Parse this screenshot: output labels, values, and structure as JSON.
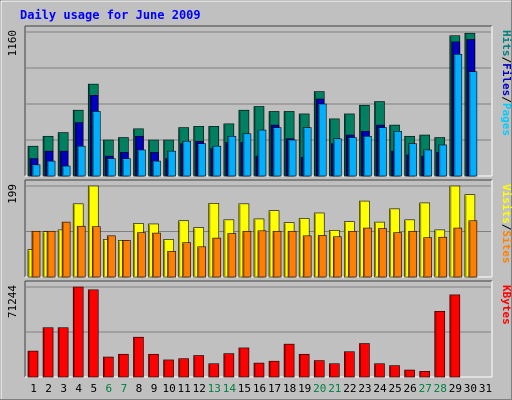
{
  "chart_data": [
    {
      "type": "bar",
      "title": "Daily usage for June 2009",
      "ymax_label": "1160",
      "legend": [
        {
          "label": "Pages",
          "color": "#00ccff"
        },
        {
          "label": "Files",
          "color": "#0000c0"
        },
        {
          "label": "Hits",
          "color": "#008080"
        }
      ],
      "categories": [
        "1",
        "2",
        "3",
        "4",
        "5",
        "6",
        "7",
        "8",
        "9",
        "10",
        "11",
        "12",
        "13",
        "14",
        "15",
        "16",
        "17",
        "18",
        "19",
        "20",
        "21",
        "22",
        "23",
        "24",
        "25",
        "26",
        "27",
        "28",
        "29",
        "30",
        "31"
      ],
      "weekend_days": [
        "6",
        "7",
        "13",
        "14",
        "20",
        "21",
        "27",
        "28"
      ],
      "series": [
        {
          "name": "Hits",
          "color": "#008060",
          "values": [
            240,
            320,
            350,
            530,
            740,
            290,
            310,
            380,
            290,
            290,
            390,
            400,
            400,
            420,
            530,
            560,
            520,
            520,
            500,
            680,
            460,
            500,
            570,
            600,
            410,
            320,
            330,
            310,
            1130,
            1150,
            null
          ]
        },
        {
          "name": "Files",
          "color": "#0000c0",
          "values": [
            140,
            200,
            200,
            430,
            650,
            160,
            190,
            320,
            190,
            140,
            260,
            280,
            220,
            270,
            270,
            160,
            410,
            300,
            150,
            620,
            260,
            330,
            360,
            410,
            200,
            170,
            160,
            190,
            1080,
            1100,
            null
          ]
        },
        {
          "name": "Pages",
          "color": "#00b0ff",
          "values": [
            90,
            120,
            80,
            240,
            520,
            140,
            140,
            210,
            120,
            200,
            280,
            260,
            240,
            320,
            340,
            370,
            390,
            290,
            390,
            580,
            300,
            310,
            320,
            390,
            360,
            260,
            210,
            250,
            980,
            840,
            null
          ]
        }
      ],
      "ylim": [
        0,
        1160
      ]
    },
    {
      "type": "bar",
      "ymax_label": "199",
      "legend": [
        {
          "label": "Sites",
          "color": "#ff8000"
        },
        {
          "label": "Visits",
          "color": "#ffff00"
        }
      ],
      "categories": [
        "1",
        "2",
        "3",
        "4",
        "5",
        "6",
        "7",
        "8",
        "9",
        "10",
        "11",
        "12",
        "13",
        "14",
        "15",
        "16",
        "17",
        "18",
        "19",
        "20",
        "21",
        "22",
        "23",
        "24",
        "25",
        "26",
        "27",
        "28",
        "29",
        "30",
        "31"
      ],
      "series": [
        {
          "name": "Visits",
          "color": "#ffff00",
          "values": [
            60,
            99,
            103,
            160,
            199,
            82,
            80,
            117,
            116,
            82,
            123,
            108,
            161,
            125,
            160,
            127,
            145,
            119,
            128,
            140,
            102,
            121,
            166,
            120,
            149,
            125,
            162,
            103,
            199,
            180,
            null
          ]
        },
        {
          "name": "Sites",
          "color": "#ff8000",
          "values": [
            100,
            100,
            120,
            111,
            110,
            90,
            80,
            97,
            96,
            56,
            75,
            66,
            85,
            95,
            100,
            101,
            100,
            100,
            90,
            91,
            88,
            100,
            107,
            106,
            97,
            100,
            86,
            87,
            107,
            123,
            null
          ]
        }
      ],
      "ylim": [
        0,
        199
      ]
    },
    {
      "type": "bar",
      "ymax_label": "71244",
      "legend": [
        {
          "label": "KBytes",
          "color": "#ff0000"
        }
      ],
      "categories": [
        "1",
        "2",
        "3",
        "4",
        "5",
        "6",
        "7",
        "8",
        "9",
        "10",
        "11",
        "12",
        "13",
        "14",
        "15",
        "16",
        "17",
        "18",
        "19",
        "20",
        "21",
        "22",
        "23",
        "24",
        "25",
        "26",
        "27",
        "28",
        "29",
        "30",
        "31"
      ],
      "series": [
        {
          "name": "KBytes",
          "color": "#ff0000",
          "values": [
            20500,
            39000,
            39000,
            71244,
            69000,
            15800,
            18000,
            31500,
            18000,
            13500,
            14500,
            17000,
            10500,
            18500,
            23000,
            11000,
            12500,
            26000,
            18000,
            13000,
            10500,
            20000,
            26500,
            10500,
            9000,
            5500,
            4500,
            52000,
            65000,
            null,
            null
          ]
        }
      ],
      "ylim": [
        0,
        71244
      ]
    }
  ]
}
